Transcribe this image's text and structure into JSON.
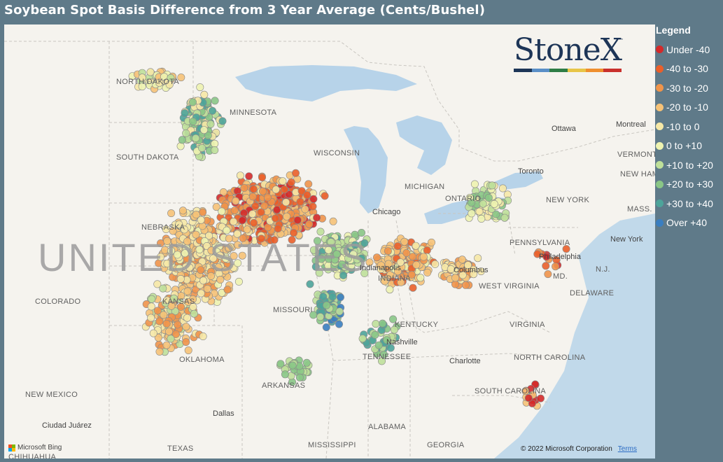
{
  "title": "Soybean Spot Basis Difference from 3 Year Average (Cents/Bushel)",
  "legend": {
    "title": "Legend",
    "items": [
      {
        "label": "Under -40",
        "color": "#d42a2a"
      },
      {
        "label": "-40 to -30",
        "color": "#ea5f2a"
      },
      {
        "label": "-30 to -20",
        "color": "#f0944a"
      },
      {
        "label": "-20 to -10",
        "color": "#f6c277"
      },
      {
        "label": "-10 to 0",
        "color": "#f6e8a6"
      },
      {
        "label": "0 to +10",
        "color": "#eef3b0"
      },
      {
        "label": "+10 to +20",
        "color": "#bfe09a"
      },
      {
        "label": "+20 to +30",
        "color": "#8ac686"
      },
      {
        "label": "+30 to +40",
        "color": "#4da49a"
      },
      {
        "label": "Over +40",
        "color": "#3a7ec0"
      }
    ]
  },
  "logo": {
    "text": "StoneX",
    "tm": "™",
    "bar_colors": [
      "#1d3557",
      "#5a8fc7",
      "#2e7d46",
      "#e8c547",
      "#ef8f2e",
      "#c9302c"
    ]
  },
  "map": {
    "country_label": "UNITED STATES",
    "state_labels": [
      "NORTH DAKOTA",
      "MINNESOTA",
      "SOUTH DAKOTA",
      "NEBRASKA",
      "COLORADO",
      "KANSAS",
      "MISSOURI",
      "OKLAHOMA",
      "ARKANSAS",
      "NEW MEXICO",
      "TEXAS",
      "MISSISSIPPI",
      "ALABAMA",
      "GEORGIA",
      "TENNESSEE",
      "KENTUCKY",
      "INDIANA",
      "WEST VIRGINIA",
      "VIRGINIA",
      "NORTH CAROLINA",
      "SOUTH CAROLINA",
      "PENNSYLVANIA",
      "NEW YORK",
      "VERMONT",
      "NEW HAMPSHIRE",
      "MASS.",
      "DELAWARE",
      "MD.",
      "N.J.",
      "WISCONSIN",
      "MICHIGAN",
      "ONTARIO",
      "CHIHUAHUA"
    ],
    "city_labels": [
      "Ottawa",
      "Montreal",
      "Toronto",
      "Chicago",
      "Columbus",
      "Philadelphia",
      "New York",
      "Nashville",
      "Charlotte",
      "Dallas",
      "Ciudad Juárez",
      "Indianapolis"
    ],
    "attribution": "Microsoft Bing",
    "copyright": "© 2022 Microsoft Corporation",
    "terms": "Terms"
  }
}
